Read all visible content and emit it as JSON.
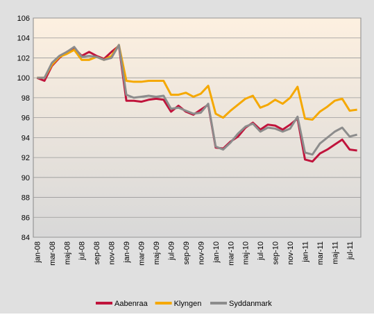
{
  "chart_data": {
    "type": "line",
    "categories": [
      "jan-08",
      null,
      "mar-08",
      null,
      "maj-08",
      null,
      "jul-08",
      null,
      "sep-08",
      null,
      "nov-08",
      null,
      "jan-09",
      null,
      "mar-09",
      null,
      "maj-09",
      null,
      "jul-09",
      null,
      "sep-09",
      null,
      "nov-09",
      null,
      "jan-10",
      null,
      "mar-10",
      null,
      "maj-10",
      null,
      "jul-10",
      null,
      "sep-10",
      null,
      "nov-10",
      null,
      "jan-11",
      null,
      "mar-11",
      null,
      "maj-11",
      null,
      "jul-11",
      null
    ],
    "series": [
      {
        "name": "Aabenraa",
        "color": "#c0143c",
        "values": [
          100,
          99.7,
          101.2,
          102,
          102.6,
          103,
          102.2,
          102.6,
          102.2,
          101.9,
          102.6,
          103.2,
          97.7,
          97.7,
          97.6,
          97.8,
          97.9,
          97.8,
          96.6,
          97.2,
          96.6,
          96.3,
          96.8,
          97.3,
          93.0,
          92.9,
          93.6,
          94.1,
          95.0,
          95.5,
          94.8,
          95.3,
          95.2,
          94.8,
          95.3,
          95.9,
          91.8,
          91.6,
          92.4,
          92.8,
          93.3,
          93.8,
          92.8,
          92.7
        ]
      },
      {
        "name": "Klyngen",
        "color": "#f5a800",
        "values": [
          100,
          100,
          101.3,
          102.1,
          102.4,
          102.8,
          101.8,
          101.8,
          102.1,
          101.8,
          102.2,
          103.3,
          99.7,
          99.6,
          99.6,
          99.7,
          99.7,
          99.7,
          98.3,
          98.3,
          98.5,
          98.1,
          98.4,
          99.2,
          96.4,
          96.0,
          96.7,
          97.3,
          97.9,
          98.2,
          97.0,
          97.3,
          97.8,
          97.4,
          98.0,
          99.1,
          95.9,
          95.8,
          96.6,
          97.1,
          97.7,
          97.9,
          96.7,
          96.8
        ]
      },
      {
        "name": "Syddanmark",
        "color": "#8c8c8c",
        "values": [
          100,
          100,
          101.5,
          102.2,
          102.6,
          103.1,
          102.1,
          102.2,
          102.1,
          101.8,
          102.0,
          103.3,
          98.3,
          98.0,
          98.1,
          98.2,
          98.1,
          98.2,
          96.9,
          97.0,
          96.7,
          96.4,
          96.5,
          97.4,
          93.1,
          92.8,
          93.5,
          94.4,
          95.1,
          95.4,
          94.6,
          95.0,
          94.9,
          94.6,
          94.9,
          96.1,
          92.5,
          92.3,
          93.4,
          94.0,
          94.6,
          95.0,
          94.1,
          94.3
        ]
      }
    ],
    "ylim": [
      84,
      106
    ],
    "yticks": [
      84,
      86,
      88,
      90,
      92,
      94,
      96,
      98,
      100,
      102,
      104,
      106
    ],
    "grid": true,
    "legend": "bottom"
  }
}
